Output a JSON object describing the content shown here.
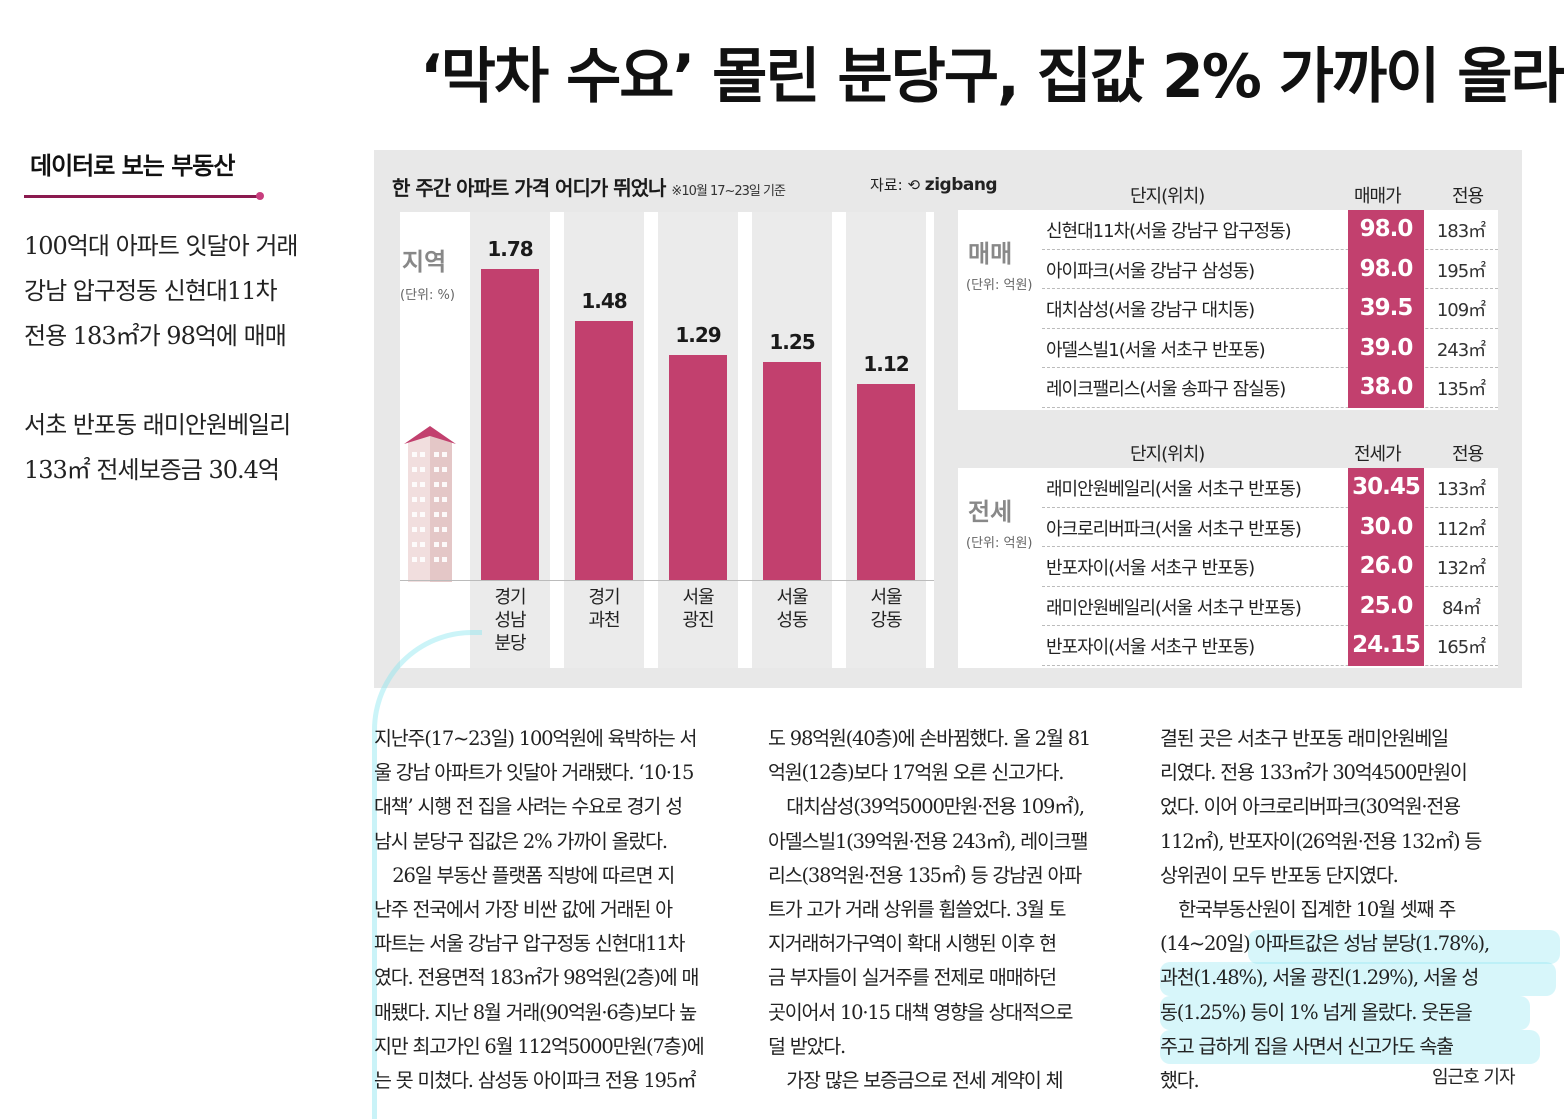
{
  "headline": "‘막차 수요’ 몰린 분당구, 집값 2% 가까이 올라",
  "sidebar": {
    "series": "데이터로 보는 부동산",
    "summary": [
      "100억대 아파트 잇달아 거래",
      "강남 압구정동 신현대11차",
      "전용 183㎡가 98억에 매매",
      "",
      "서초 반포동 래미안원베일리",
      "133㎡ 전세보증금 30.4억"
    ]
  },
  "chart_data": {
    "type": "bar",
    "title": "한 주간 아파트 가격 어디가 뛰었나",
    "note": "※10월 17~23일 기준",
    "source_label": "자료:",
    "source": "zigbang",
    "ylabel": "지역",
    "unit": "(단위: %)",
    "categories": [
      "경기\n성남\n분당",
      "경기\n과천",
      "서울\n광진",
      "서울\n성동",
      "서울\n강동"
    ],
    "values": [
      1.78,
      1.48,
      1.29,
      1.25,
      1.12
    ],
    "value_labels": [
      "1.78",
      "1.48",
      "1.29",
      "1.25",
      "1.12"
    ],
    "ylim": [
      0,
      1.9
    ],
    "colors": {
      "bar": "#c2406e"
    }
  },
  "sale_table": {
    "kind": "매매",
    "unit": "(단위: 억원)",
    "headers": [
      "단지(위치)",
      "매매가",
      "전용"
    ],
    "rows": [
      {
        "name": "신현대11차(서울 강남구 압구정동)",
        "price": "98.0",
        "area": "183㎡"
      },
      {
        "name": "아이파크(서울 강남구 삼성동)",
        "price": "98.0",
        "area": "195㎡"
      },
      {
        "name": "대치삼성(서울 강남구 대치동)",
        "price": "39.5",
        "area": "109㎡"
      },
      {
        "name": "아델스빌1(서울 서초구 반포동)",
        "price": "39.0",
        "area": "243㎡"
      },
      {
        "name": "레이크팰리스(서울 송파구 잠실동)",
        "price": "38.0",
        "area": "135㎡"
      }
    ]
  },
  "jeonse_table": {
    "kind": "전세",
    "unit": "(단위: 억원)",
    "headers": [
      "단지(위치)",
      "전세가",
      "전용"
    ],
    "rows": [
      {
        "name": "래미안원베일리(서울 서초구 반포동)",
        "price": "30.45",
        "area": "133㎡"
      },
      {
        "name": "아크로리버파크(서울 서초구 반포동)",
        "price": "30.0",
        "area": "112㎡"
      },
      {
        "name": "반포자이(서울 서초구 반포동)",
        "price": "26.0",
        "area": "132㎡"
      },
      {
        "name": "래미안원베일리(서울 서초구 반포동)",
        "price": "25.0",
        "area": "84㎡"
      },
      {
        "name": "반포자이(서울 서초구 반포동)",
        "price": "24.15",
        "area": "165㎡"
      }
    ]
  },
  "article": {
    "col1": [
      "지난주(17~23일) 100억원에 육박하는 서",
      "울 강남 아파트가 잇달아 거래됐다. ‘10·15",
      "대책’ 시행 전 집을 사려는 수요로 경기 성",
      "남시 분당구 집값은 2% 가까이 올랐다.",
      "　26일 부동산 플랫폼 직방에 따르면 지",
      "난주 전국에서 가장 비싼 값에 거래된 아",
      "파트는 서울 강남구 압구정동 신현대11차",
      "였다. 전용면적 183㎡가 98억원(2층)에 매",
      "매됐다. 지난 8월 거래(90억원·6층)보다 높",
      "지만 최고가인 6월 112억5000만원(7층)에",
      "는 못 미쳤다. 삼성동 아이파크 전용 195㎡"
    ],
    "col2": [
      "도 98억원(40층)에 손바뀜했다. 올 2월 81",
      "억원(12층)보다 17억원 오른 신고가다.",
      "　대치삼성(39억5000만원·전용 109㎡),",
      "아델스빌1(39억원·전용 243㎡), 레이크팰",
      "리스(38억원·전용 135㎡) 등 강남권 아파",
      "트가 고가 거래 상위를 휩쓸었다. 3월 토",
      "지거래허가구역이 확대 시행된 이후 현",
      "금 부자들이 실거주를 전제로 매매하던",
      "곳이어서 10·15 대책 영향을 상대적으로",
      "덜 받았다.",
      "　가장 많은 보증금으로 전세 계약이 체"
    ],
    "col3": [
      "결된 곳은 서초구 반포동 래미안원베일",
      "리였다. 전용 133㎡가 30억4500만원이",
      "었다. 이어 아크로리버파크(30억원·전용",
      "112㎡), 반포자이(26억원·전용 132㎡) 등",
      "상위권이 모두 반포동 단지였다.",
      "　한국부동산원이 집계한 10월 셋째 주",
      "(14~20일) 아파트값은 성남 분당(1.78%),",
      "과천(1.48%), 서울 광진(1.29%), 서울 성",
      "동(1.25%) 등이 1% 넘게 올랐다. 웃돈을",
      "주고 급하게 집을 사면서 신고가도 속출",
      "했다."
    ],
    "byline": "임근호 기자"
  }
}
